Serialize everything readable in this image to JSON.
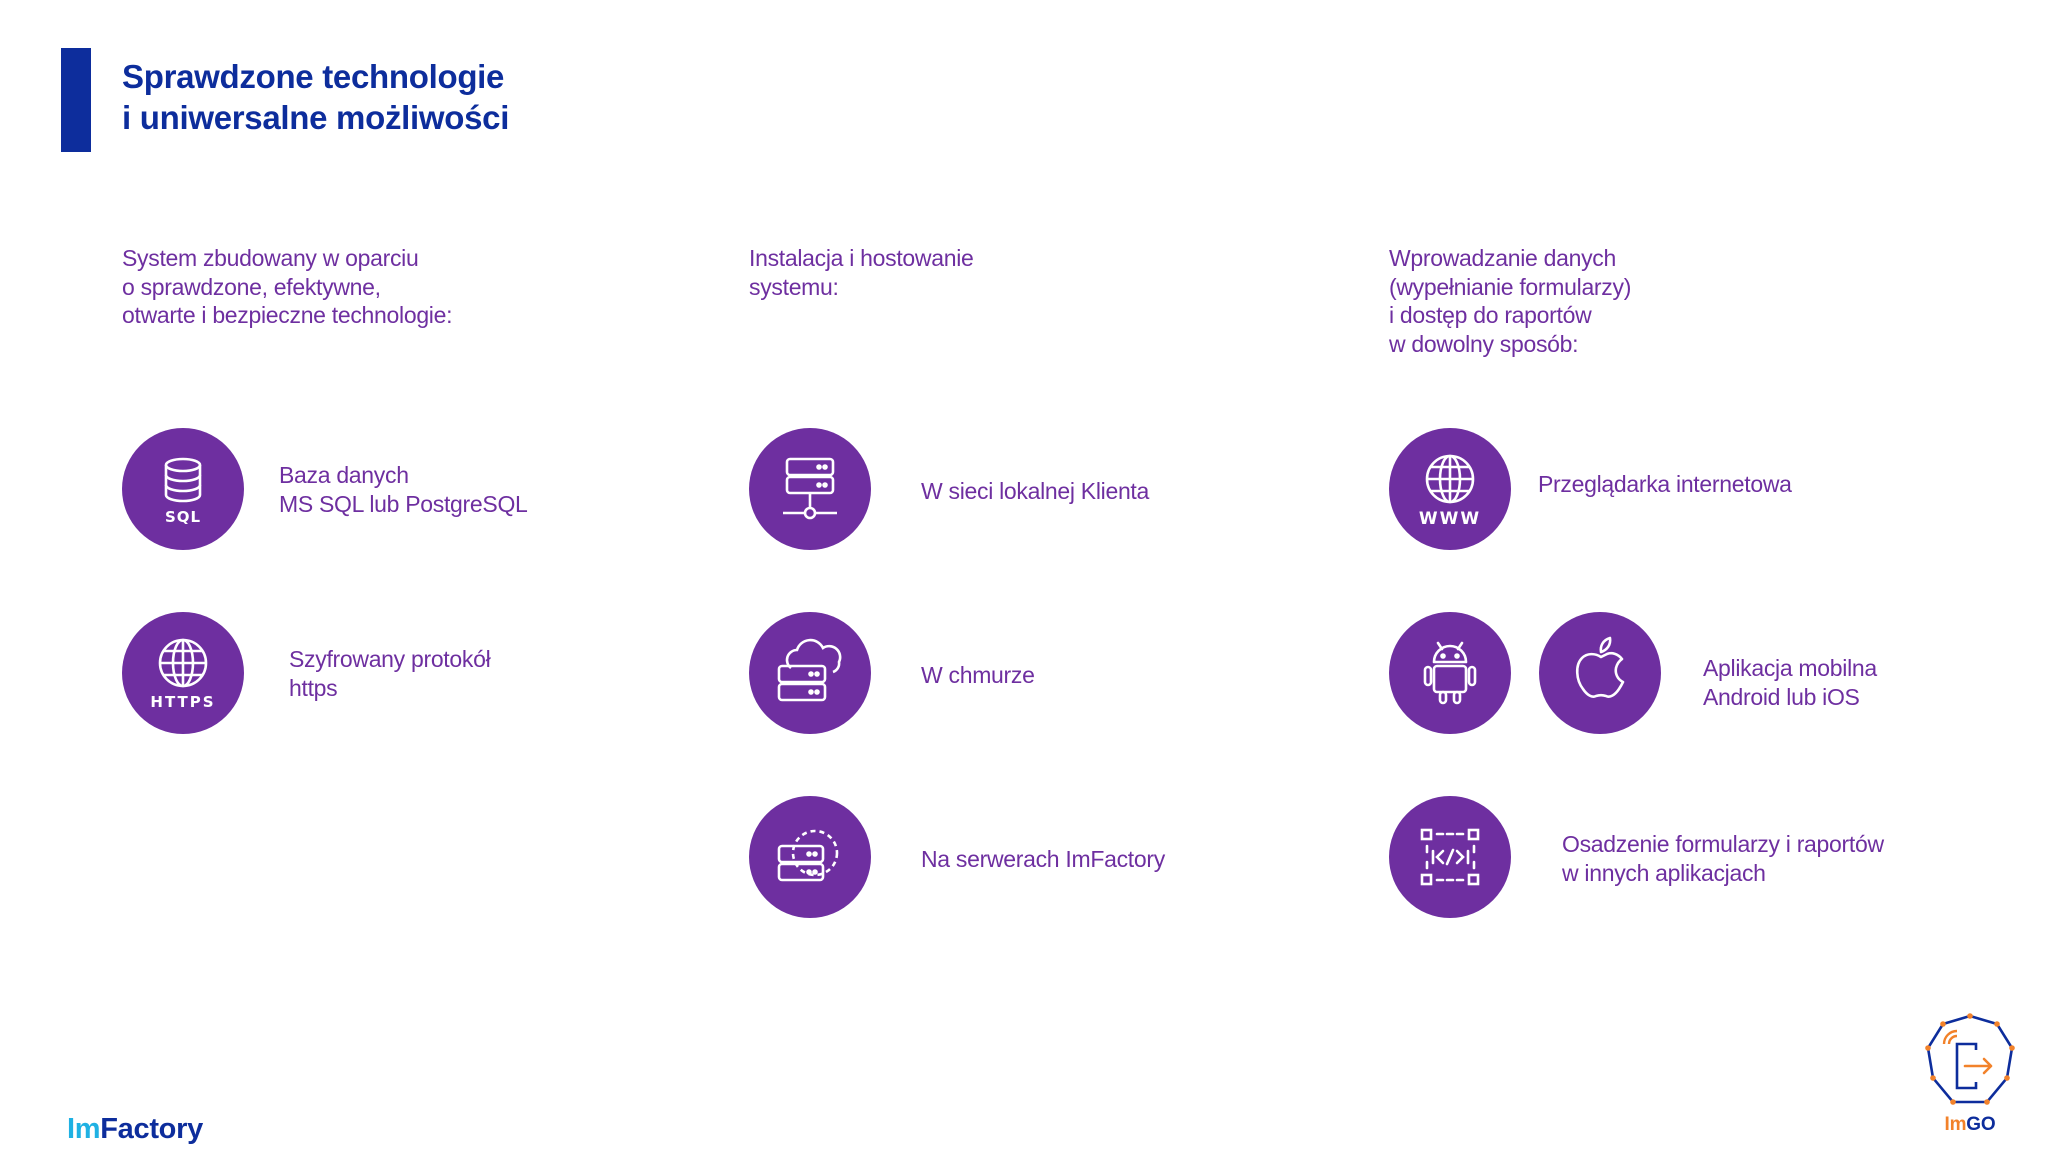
{
  "title": {
    "line1": "Sprawdzone technologie",
    "line2": "i uniwersalne możliwości"
  },
  "columns": [
    {
      "intro": [
        "System zbudowany w oparciu",
        "o sprawdzone, efektywne,",
        "otwarte i bezpieczne technologie:"
      ],
      "items": [
        {
          "icon": "database-sql-icon",
          "icon_text": "SQL",
          "label": [
            "Baza danych",
            "MS SQL lub PostgreSQL"
          ]
        },
        {
          "icon": "globe-https-icon",
          "icon_text": "HTTPS",
          "label": [
            "Szyfrowany protokół",
            "https"
          ]
        }
      ]
    },
    {
      "intro": [
        "Instalacja i hostowanie",
        "systemu:"
      ],
      "items": [
        {
          "icon": "local-server-network-icon",
          "label": [
            "W sieci lokalnej Klienta"
          ]
        },
        {
          "icon": "cloud-server-icon",
          "label": [
            "W chmurze"
          ]
        },
        {
          "icon": "hosted-server-icon",
          "label": [
            "Na serwerach ImFactory"
          ]
        }
      ]
    },
    {
      "intro": [
        "Wprowadzanie danych",
        "(wypełnianie formularzy)",
        "i dostęp do raportów",
        "w dowolny sposób:"
      ],
      "items": [
        {
          "icon": "globe-www-icon",
          "icon_text": "WWW",
          "label": [
            "Przeglądarka internetowa"
          ]
        },
        {
          "icons": [
            "android-icon",
            "apple-icon"
          ],
          "label": [
            "Aplikacja mobilna",
            "Android lub iOS"
          ]
        },
        {
          "icon": "embed-code-icon",
          "label": [
            "Osadzenie formularzy i raportów",
            "w innych aplikacjach"
          ]
        }
      ]
    }
  ],
  "brand": {
    "left_im": "Im",
    "left_factory": "Factory",
    "right_im": "Im",
    "right_go": "GO"
  },
  "colors": {
    "primary_blue": "#0d2d9c",
    "purple": "#6e2fa0",
    "cyan": "#1fb1e3",
    "orange": "#f2822a"
  }
}
